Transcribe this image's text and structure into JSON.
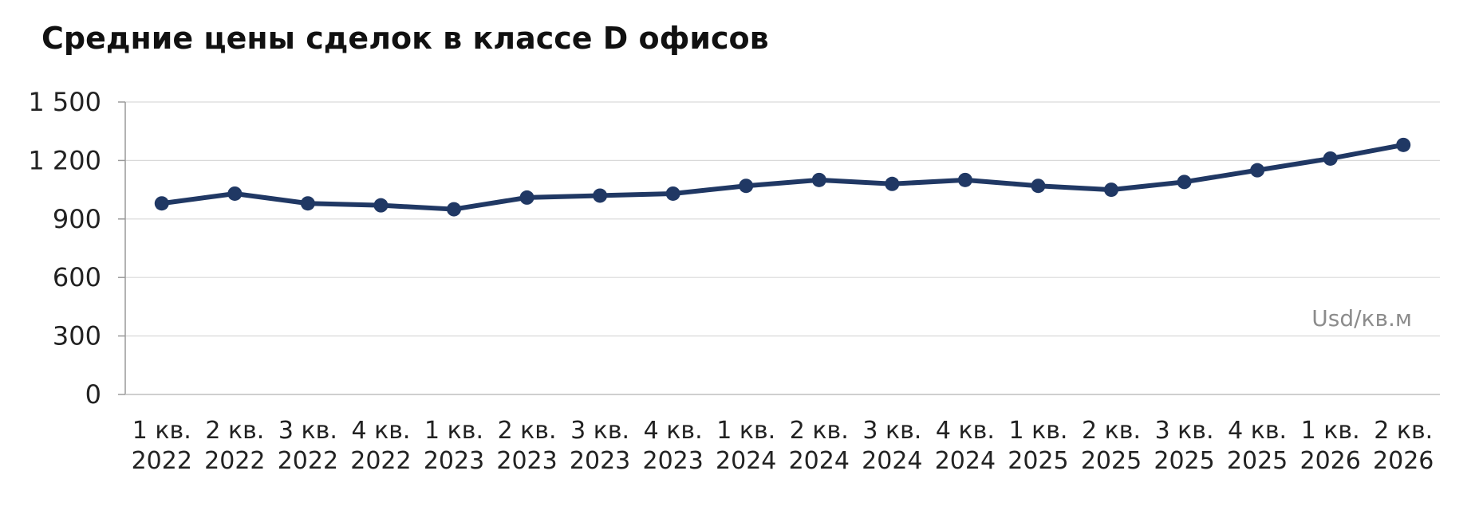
{
  "chart_data": {
    "type": "line",
    "title": "Средние цены сделок в классе D офисов",
    "unit_label": "Usd/кв.м",
    "categories": [
      [
        "1 кв.",
        "2022"
      ],
      [
        "2 кв.",
        "2022"
      ],
      [
        "3 кв.",
        "2022"
      ],
      [
        "4 кв.",
        "2022"
      ],
      [
        "1 кв.",
        "2023"
      ],
      [
        "2 кв.",
        "2023"
      ],
      [
        "3 кв.",
        "2023"
      ],
      [
        "4 кв.",
        "2023"
      ],
      [
        "1 кв.",
        "2024"
      ],
      [
        "2 кв.",
        "2024"
      ],
      [
        "3 кв.",
        "2024"
      ],
      [
        "4 кв.",
        "2024"
      ],
      [
        "1 кв.",
        "2025"
      ],
      [
        "2 кв.",
        "2025"
      ],
      [
        "3 кв.",
        "2025"
      ],
      [
        "4 кв.",
        "2025"
      ],
      [
        "1 кв.",
        "2026"
      ],
      [
        "2 кв.",
        "2026"
      ]
    ],
    "series": [
      {
        "values": [
          980,
          1030,
          980,
          970,
          950,
          1010,
          1020,
          1030,
          1070,
          1100,
          1080,
          1100,
          1070,
          1050,
          1090,
          1150,
          1210,
          1280
        ],
        "color": "#203864"
      }
    ],
    "yticks": [
      "0",
      "300",
      "600",
      "900",
      "1 200",
      "1 500"
    ],
    "ylim": [
      0,
      1500
    ],
    "grid": true,
    "legend": "none"
  }
}
